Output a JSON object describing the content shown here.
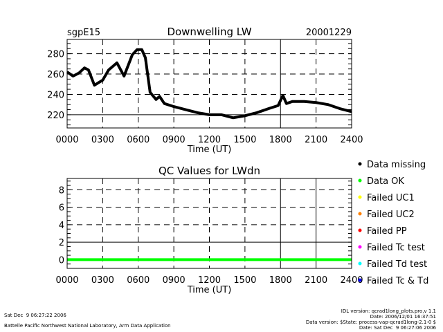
{
  "chart_data": [
    {
      "type": "line",
      "site_label": "sgpE15",
      "title": "Downwelling LW",
      "date_label": "20001229",
      "xlabel": "Time (UT)",
      "ylabel": "",
      "xlim": [
        0,
        24
      ],
      "ylim": [
        207,
        294
      ],
      "x_ticks": [
        0,
        3,
        6,
        9,
        12,
        15,
        18,
        21,
        24
      ],
      "x_tick_labels": [
        "0000",
        "0300",
        "0600",
        "0900",
        "1200",
        "1500",
        "1800",
        "2100",
        "2400"
      ],
      "y_ticks": [
        220,
        240,
        260,
        280
      ],
      "y_tick_labels": [
        "220",
        "240",
        "260",
        "280"
      ],
      "grid": true,
      "series": [
        {
          "name": "Downwelling LW",
          "color": "#000000",
          "x": [
            0,
            0.5,
            1.0,
            1.46,
            1.8,
            2.3,
            3.0,
            3.5,
            4.2,
            4.8,
            5.5,
            5.9,
            6.3,
            6.6,
            7.0,
            7.5,
            7.8,
            8.2,
            9,
            10,
            11,
            12,
            13,
            14,
            15,
            16,
            17,
            17.8,
            18.2,
            18.5,
            19,
            20,
            21,
            22,
            23,
            24
          ],
          "y": [
            262,
            258,
            261,
            266,
            264,
            249,
            254,
            264,
            271,
            258,
            279,
            284,
            284,
            276,
            242,
            235,
            238,
            231,
            228,
            225,
            222,
            220,
            220,
            217,
            219,
            222,
            226,
            229,
            239,
            231,
            233,
            233,
            232,
            230,
            226,
            223
          ]
        }
      ]
    },
    {
      "type": "line",
      "title": "QC Values for LWdn",
      "xlabel": "Time (UT)",
      "ylabel": "",
      "xlim": [
        0,
        24
      ],
      "ylim": [
        -1,
        9.3
      ],
      "x_ticks": [
        0,
        3,
        6,
        9,
        12,
        15,
        18,
        21,
        24
      ],
      "x_tick_labels": [
        "0000",
        "0300",
        "0600",
        "0900",
        "1200",
        "1500",
        "1800",
        "2100",
        "2400"
      ],
      "y_ticks": [
        0,
        2,
        4,
        6,
        8
      ],
      "y_tick_labels": [
        "0",
        "2",
        "4",
        "6",
        "8"
      ],
      "grid": true,
      "series": [
        {
          "name": "QC",
          "color": "#00ff00",
          "x": [
            0,
            24
          ],
          "y": [
            0,
            0
          ]
        }
      ],
      "legend": {
        "placement": "right",
        "entries": [
          {
            "label": "Data missing",
            "color": "#000000"
          },
          {
            "label": "Data OK",
            "color": "#00ff00"
          },
          {
            "label": "Failed UC1",
            "color": "#ffff00"
          },
          {
            "label": "Failed UC2",
            "color": "#ff8000"
          },
          {
            "label": "Failed PP",
            "color": "#ff0000"
          },
          {
            "label": "Failed Tc test",
            "color": "#ff00ff"
          },
          {
            "label": "Failed Td test",
            "color": "#00ffff"
          },
          {
            "label": "Failed Tc & Td",
            "color": "#0000ff"
          }
        ]
      }
    }
  ],
  "footer": {
    "left_date": "Sat Dec  9 06:27:22 2006",
    "left_org": "Battelle Pacific Northwest National Laboratory, Arm Data Application",
    "right_lines": [
      "IDL version: qcrad1long_plots.pro,v 1.1",
      "Date: 2006/12/01 16:37:51",
      "Data version: $State: process-vap-qcrad1long-2.1-0 $",
      "Date: Sat Dec  9 06:27:06 2006"
    ]
  }
}
